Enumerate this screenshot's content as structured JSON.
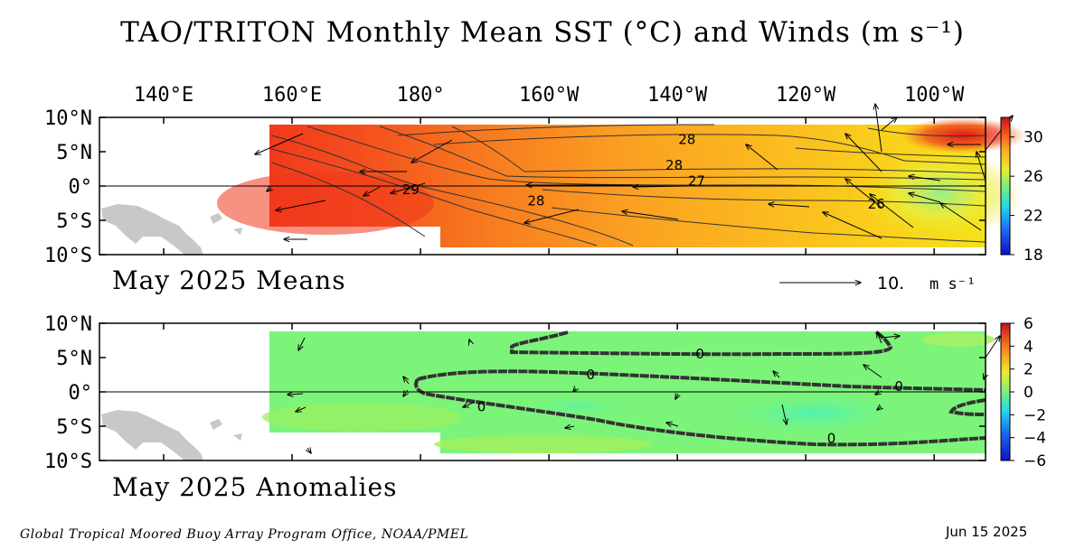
{
  "title": "TAO/TRITON Monthly Mean SST (°C) and Winds (m s⁻¹)",
  "footer": {
    "credit": "Global Tropical Moored Buoy Array Program Office, NOAA/PMEL",
    "date": "Jun 15 2025"
  },
  "colors": {
    "land": "#c8c8c8",
    "frame": "#000000",
    "mask": "#ffffff"
  },
  "chart_data": [
    {
      "type": "heatmap",
      "title": "May 2025 Means",
      "variable": "SST (°C) with wind vectors (m s⁻¹)",
      "x_ticks": [
        "140°E",
        "160°E",
        "180°",
        "160°W",
        "140°W",
        "120°W",
        "100°W"
      ],
      "y_ticks": [
        "10°N",
        "5°N",
        "0°",
        "5°S",
        "10°S"
      ],
      "xlim": [
        130,
        268
      ],
      "ylim": [
        -10,
        10
      ],
      "colorbar": {
        "ticks": [
          "30",
          "26",
          "22",
          "18"
        ],
        "range": [
          18,
          32
        ]
      },
      "reference_vector": {
        "label": "10.",
        "unit": "m s⁻¹"
      },
      "contour_labels": [
        {
          "value": "29",
          "lon": 178.5,
          "lat": -0.5
        },
        {
          "value": "28",
          "lon": 221.5,
          "lat": 6.8
        },
        {
          "value": "28",
          "lon": 219.5,
          "lat": 3.0
        },
        {
          "value": "27",
          "lon": 223.0,
          "lat": 0.7
        },
        {
          "value": "28",
          "lon": 198.0,
          "lat": -2.2
        },
        {
          "value": "26",
          "lon": 251.0,
          "lat": -2.6
        }
      ]
    },
    {
      "type": "heatmap",
      "title": "May 2025 Anomalies",
      "variable": "SST anomaly (°C) with wind anomaly vectors",
      "x_ticks": [
        "140°E",
        "160°E",
        "180°",
        "160°W",
        "140°W",
        "120°W",
        "100°W"
      ],
      "y_ticks": [
        "10°N",
        "5°N",
        "0°",
        "5°S",
        "10°S"
      ],
      "xlim": [
        130,
        268
      ],
      "ylim": [
        -10,
        10
      ],
      "colorbar": {
        "ticks": [
          "6",
          "4",
          "2",
          "0",
          "−2",
          "−4",
          "−6"
        ],
        "range": [
          -6,
          6
        ]
      },
      "contour_labels": [
        {
          "value": "0",
          "lon": 223.5,
          "lat": 5.5
        },
        {
          "value": "0",
          "lon": 206.5,
          "lat": 2.5
        },
        {
          "value": "0",
          "lon": 254.5,
          "lat": 0.8
        },
        {
          "value": "0",
          "lon": 189.5,
          "lat": -2.2
        },
        {
          "value": "0",
          "lon": 244.0,
          "lat": -6.8
        }
      ]
    }
  ]
}
